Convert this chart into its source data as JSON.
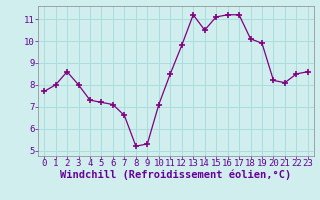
{
  "x": [
    0,
    1,
    2,
    3,
    4,
    5,
    6,
    7,
    8,
    9,
    10,
    11,
    12,
    13,
    14,
    15,
    16,
    17,
    18,
    19,
    20,
    21,
    22,
    23
  ],
  "y": [
    7.7,
    8.0,
    8.6,
    8.0,
    7.3,
    7.2,
    7.1,
    6.6,
    5.2,
    5.3,
    7.1,
    8.5,
    9.8,
    11.2,
    10.5,
    11.1,
    11.2,
    11.2,
    10.1,
    9.9,
    8.2,
    8.1,
    8.5,
    8.6
  ],
  "line_color": "#800080",
  "marker": "+",
  "marker_size": 4,
  "marker_lw": 1.2,
  "bg_color": "#d0eeee",
  "grid_color": "#aadddd",
  "xlabel": "Windchill (Refroidissement éolien,°C)",
  "xlim": [
    -0.5,
    23.5
  ],
  "ylim": [
    4.75,
    11.6
  ],
  "yticks": [
    5,
    6,
    7,
    8,
    9,
    10,
    11
  ],
  "xticks": [
    0,
    1,
    2,
    3,
    4,
    5,
    6,
    7,
    8,
    9,
    10,
    11,
    12,
    13,
    14,
    15,
    16,
    17,
    18,
    19,
    20,
    21,
    22,
    23
  ],
  "tick_label_fontsize": 6.5,
  "xlabel_fontsize": 7.5,
  "axis_label_color": "#660099"
}
